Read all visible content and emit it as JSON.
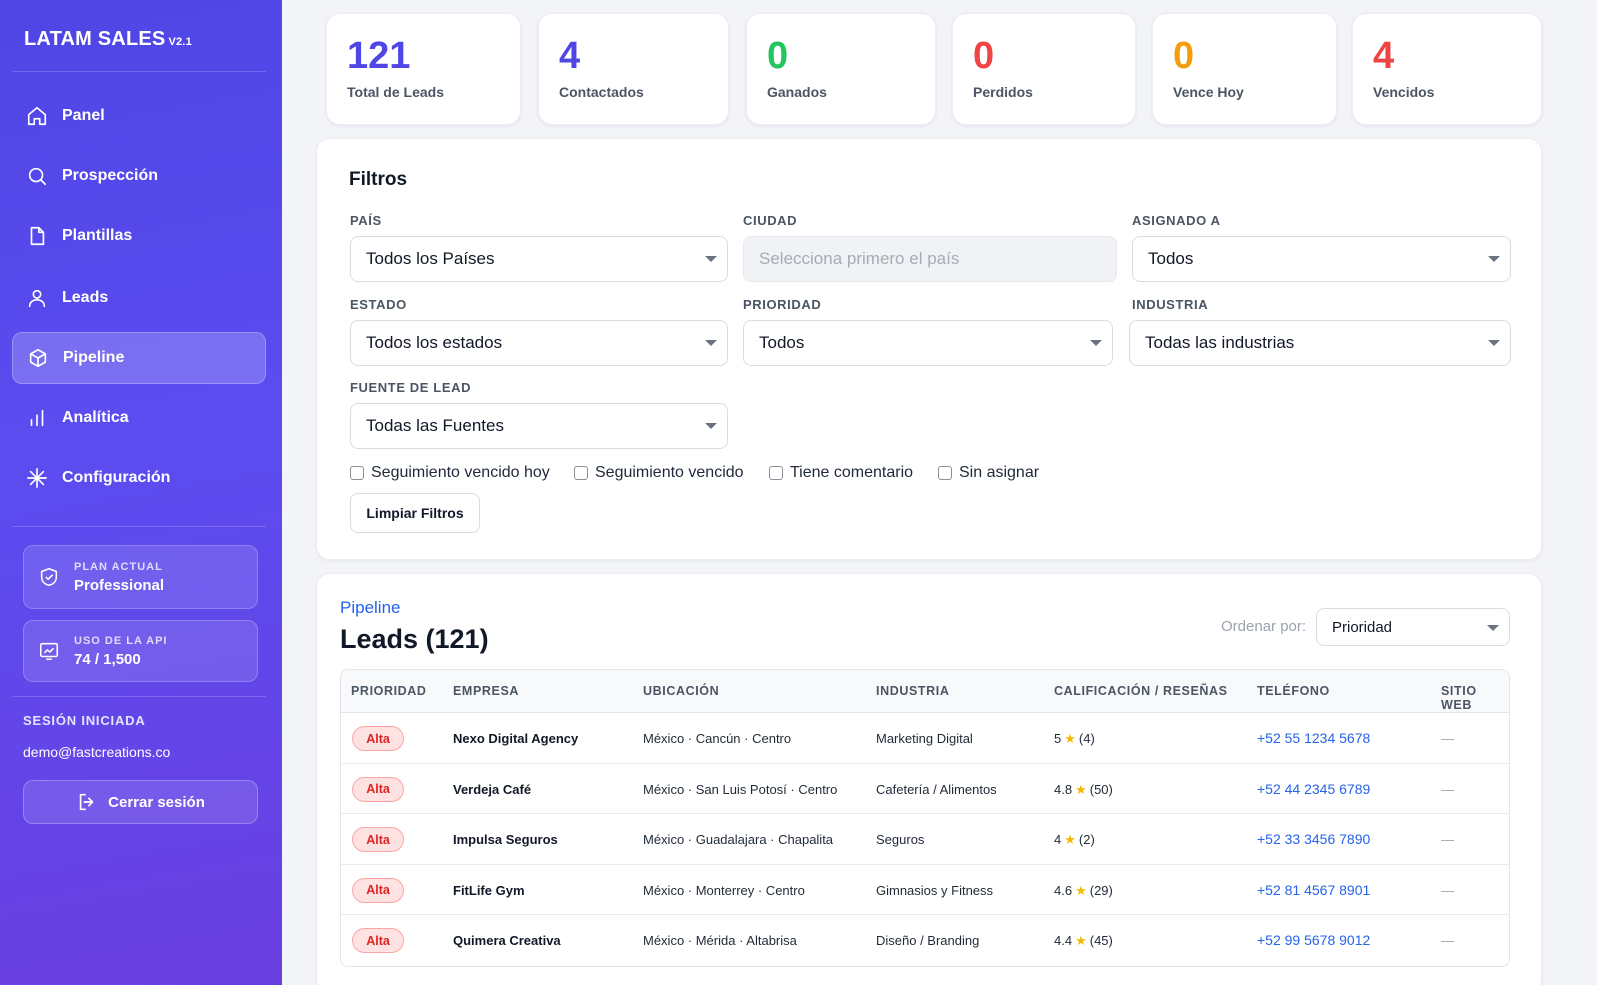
{
  "brand": {
    "name": "LATAM SALES",
    "version": "V2.1"
  },
  "nav": [
    {
      "label": "Panel",
      "icon": "home-icon"
    },
    {
      "label": "Prospección",
      "icon": "search-icon"
    },
    {
      "label": "Plantillas",
      "icon": "file-icon"
    },
    {
      "label": "Leads",
      "icon": "user-icon"
    },
    {
      "label": "Pipeline",
      "icon": "box-icon",
      "active": true
    },
    {
      "label": "Analítica",
      "icon": "bar-chart-icon"
    },
    {
      "label": "Configuración",
      "icon": "sparkle-icon"
    }
  ],
  "plan": {
    "label": "PLAN ACTUAL",
    "value": "Professional"
  },
  "api": {
    "label": "USO DE LA API",
    "value": "74 / 1,500"
  },
  "session": {
    "label": "SESIÓN INICIADA",
    "email": "demo@fastcreations.co",
    "logout": "Cerrar sesión"
  },
  "stats": [
    {
      "value": "121",
      "label": "Total de Leads",
      "color": "#4f46e5"
    },
    {
      "value": "4",
      "label": "Contactados",
      "color": "#4f46e5"
    },
    {
      "value": "0",
      "label": "Ganados",
      "color": "#22c55e"
    },
    {
      "value": "0",
      "label": "Perdidos",
      "color": "#ef4444"
    },
    {
      "value": "0",
      "label": "Vence Hoy",
      "color": "#f59e0b"
    },
    {
      "value": "4",
      "label": "Vencidos",
      "color": "#ef4444"
    }
  ],
  "filters": {
    "title": "Filtros",
    "pais": {
      "label": "PAÍS",
      "value": "Todos los Países"
    },
    "ciudad": {
      "label": "CIUDAD",
      "placeholder": "Selecciona primero el país"
    },
    "asignado": {
      "label": "ASIGNADO A",
      "value": "Todos"
    },
    "estado": {
      "label": "ESTADO",
      "value": "Todos los estados"
    },
    "prioridad": {
      "label": "PRIORIDAD",
      "value": "Todos"
    },
    "industria": {
      "label": "INDUSTRIA",
      "value": "Todas las industrias"
    },
    "fuente": {
      "label": "FUENTE DE LEAD",
      "value": "Todas las Fuentes"
    },
    "checks": [
      "Seguimiento vencido hoy",
      "Seguimiento vencido",
      "Tiene comentario",
      "Sin asignar"
    ],
    "clear": "Limpiar Filtros"
  },
  "pipeline": {
    "kicker": "Pipeline",
    "title": "Leads (121)",
    "sort_label": "Ordenar por:",
    "sort_value": "Prioridad",
    "columns": [
      "PRIORIDAD",
      "EMPRESA",
      "UBICACIÓN",
      "INDUSTRIA",
      "CALIFICACIÓN / RESEÑAS",
      "TELÉFONO",
      "SITIO WEB"
    ],
    "rows": [
      {
        "priority": "Alta",
        "company": "Nexo Digital Agency",
        "location": "México · Cancún · Centro",
        "industry": "Marketing Digital",
        "rating": "5",
        "reviews": "(4)",
        "phone": "+52 55 1234 5678",
        "web": "—"
      },
      {
        "priority": "Alta",
        "company": "Verdeja Café",
        "location": "México · San Luis Potosí · Centro",
        "industry": "Cafetería / Alimentos",
        "rating": "4.8",
        "reviews": "(50)",
        "phone": "+52 44 2345 6789",
        "web": "—"
      },
      {
        "priority": "Alta",
        "company": "Impulsa Seguros",
        "location": "México · Guadalajara · Chapalita",
        "industry": "Seguros",
        "rating": "4",
        "reviews": "(2)",
        "phone": "+52 33 3456 7890",
        "web": "—"
      },
      {
        "priority": "Alta",
        "company": "FitLife Gym",
        "location": "México · Monterrey · Centro",
        "industry": "Gimnasios y Fitness",
        "rating": "4.6",
        "reviews": "(29)",
        "phone": "+52 81 4567 8901",
        "web": "—"
      },
      {
        "priority": "Alta",
        "company": "Quimera Creativa",
        "location": "México · Mérida · Altabrisa",
        "industry": "Diseño / Branding",
        "rating": "4.4",
        "reviews": "(45)",
        "phone": "+52 99 5678 9012",
        "web": "—"
      }
    ]
  }
}
